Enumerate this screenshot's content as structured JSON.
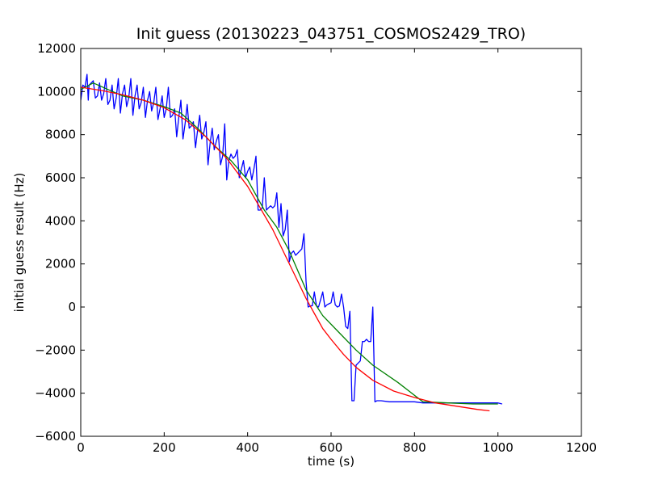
{
  "chart_data": {
    "type": "line",
    "title": "Init guess (20130223_043751_COSMOS2429_TRO)",
    "xlabel": "time (s)",
    "ylabel": "initial guess result (Hz)",
    "xlim": [
      0,
      1200
    ],
    "ylim": [
      -6000,
      12000
    ],
    "xticks": [
      0,
      200,
      400,
      600,
      800,
      1000,
      1200
    ],
    "yticks": [
      -6000,
      -4000,
      -2000,
      0,
      2000,
      4000,
      6000,
      8000,
      10000,
      12000
    ],
    "grid": false,
    "legend": "none",
    "series": [
      {
        "color": "#0000ff",
        "x": [
          0,
          5,
          10,
          15,
          18,
          20,
          25,
          30,
          35,
          40,
          45,
          50,
          55,
          60,
          65,
          70,
          75,
          80,
          85,
          90,
          95,
          100,
          105,
          110,
          115,
          120,
          125,
          130,
          135,
          140,
          145,
          150,
          155,
          160,
          165,
          170,
          175,
          180,
          185,
          190,
          195,
          200,
          205,
          210,
          215,
          220,
          225,
          230,
          235,
          240,
          245,
          250,
          255,
          260,
          265,
          270,
          275,
          280,
          285,
          290,
          295,
          300,
          305,
          310,
          315,
          320,
          325,
          330,
          335,
          340,
          345,
          350,
          355,
          360,
          365,
          370,
          375,
          380,
          385,
          390,
          395,
          400,
          405,
          410,
          415,
          420,
          425,
          430,
          435,
          440,
          445,
          450,
          455,
          460,
          465,
          470,
          475,
          480,
          485,
          490,
          495,
          500,
          505,
          510,
          515,
          520,
          525,
          530,
          535,
          540,
          545,
          550,
          555,
          560,
          565,
          570,
          575,
          580,
          585,
          590,
          595,
          600,
          605,
          610,
          615,
          620,
          625,
          630,
          635,
          640,
          645,
          650,
          655,
          660,
          665,
          670,
          675,
          680,
          685,
          690,
          695,
          700,
          705,
          710,
          720,
          740,
          760,
          780,
          800,
          820,
          840,
          860,
          880,
          900,
          920,
          940,
          960,
          980,
          1000,
          1010
        ],
        "y": [
          9600,
          10300,
          10200,
          10800,
          9600,
          10300,
          10400,
          10500,
          9700,
          9800,
          10400,
          9600,
          9900,
          10600,
          9400,
          9600,
          10300,
          9200,
          9700,
          10600,
          9000,
          9900,
          10300,
          9300,
          9700,
          10600,
          8900,
          9800,
          10300,
          9200,
          9500,
          10200,
          8800,
          9600,
          10000,
          9100,
          9500,
          10200,
          8700,
          9200,
          9800,
          8800,
          9200,
          10200,
          8800,
          8900,
          9200,
          7900,
          8800,
          9600,
          7800,
          8500,
          9400,
          8300,
          8400,
          8600,
          7400,
          8200,
          8900,
          7800,
          8100,
          8600,
          6600,
          7600,
          8300,
          7300,
          7700,
          8000,
          6600,
          7000,
          8500,
          5900,
          6800,
          7100,
          6900,
          7000,
          7300,
          6000,
          6400,
          6800,
          6000,
          6300,
          6500,
          5900,
          6400,
          7000,
          4500,
          4500,
          4600,
          6000,
          4500,
          4600,
          4700,
          4600,
          4700,
          5300,
          3700,
          4800,
          3300,
          3600,
          4500,
          2100,
          2500,
          2600,
          2400,
          2500,
          2600,
          2700,
          3400,
          1200,
          0,
          50,
          60,
          700,
          50,
          0,
          350,
          700,
          0,
          100,
          150,
          200,
          700,
          100,
          0,
          50,
          600,
          0,
          -900,
          -1000,
          -200,
          -4350,
          -4350,
          -2700,
          -2600,
          -2500,
          -1600,
          -1600,
          -1500,
          -1600,
          -1600,
          0,
          -4400,
          -4350,
          -4350,
          -4400,
          -4400,
          -4400,
          -4400,
          -4450,
          -4450,
          -4450,
          -4450,
          -4450,
          -4450,
          -4450,
          -4450,
          -4450,
          -4450,
          -4500
        ]
      },
      {
        "color": "#008000",
        "x": [
          0,
          30,
          100,
          150,
          200,
          240,
          280,
          320,
          360,
          400,
          440,
          470,
          500,
          540,
          580,
          620,
          660,
          700,
          760,
          820,
          880,
          940,
          1000
        ],
        "y": [
          10100,
          10400,
          9800,
          9600,
          9300,
          9000,
          8300,
          7500,
          6800,
          5900,
          4500,
          3700,
          2600,
          800,
          -400,
          -1200,
          -2000,
          -2700,
          -3500,
          -4400,
          -4450,
          -4500,
          -4500
        ]
      },
      {
        "color": "#ff0000",
        "x": [
          0,
          50,
          100,
          150,
          200,
          250,
          300,
          350,
          400,
          430,
          460,
          490,
          520,
          540,
          560,
          580,
          600,
          630,
          660,
          700,
          750,
          800,
          850,
          900,
          950,
          980
        ],
        "y": [
          10200,
          10050,
          9850,
          9600,
          9250,
          8700,
          7900,
          6900,
          5600,
          4600,
          3600,
          2400,
          1200,
          400,
          -300,
          -1000,
          -1500,
          -2200,
          -2800,
          -3400,
          -3900,
          -4200,
          -4450,
          -4600,
          -4750,
          -4820
        ]
      }
    ]
  }
}
